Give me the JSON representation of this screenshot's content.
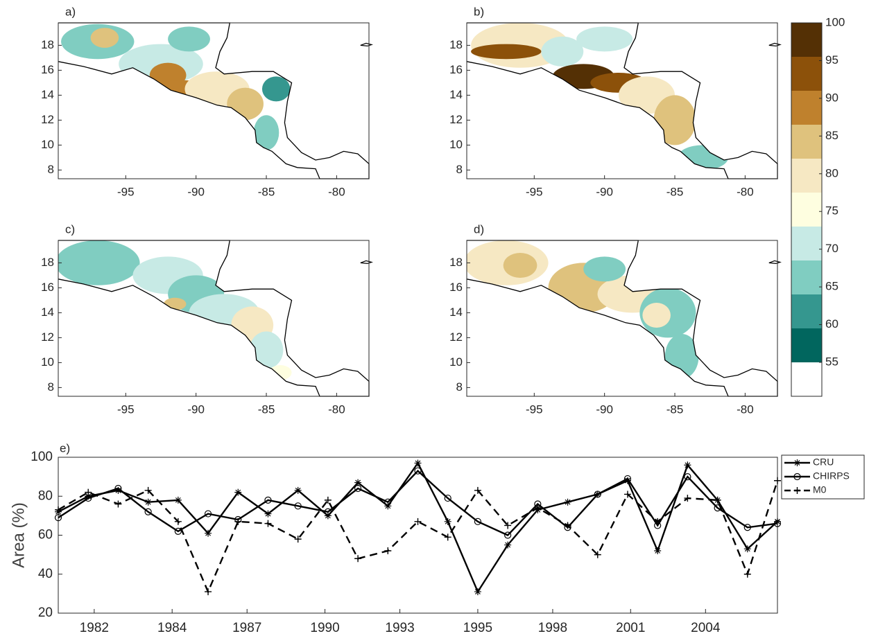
{
  "chart_data": [
    {
      "type": "map",
      "panel_label": "a)",
      "xlim": [
        -99.8,
        -77.7
      ],
      "ylim": [
        7.3,
        19.8
      ],
      "xticks": [
        -95,
        -90,
        -85,
        -80
      ],
      "yticks": [
        8,
        10,
        12,
        14,
        16,
        18
      ]
    },
    {
      "type": "map",
      "panel_label": "b)",
      "xlim": [
        -99.8,
        -77.7
      ],
      "ylim": [
        7.3,
        19.8
      ],
      "xticks": [
        -95,
        -90,
        -85,
        -80
      ],
      "yticks": [
        8,
        10,
        12,
        14,
        16,
        18
      ]
    },
    {
      "type": "map",
      "panel_label": "c)",
      "xlim": [
        -99.8,
        -77.7
      ],
      "ylim": [
        7.3,
        19.8
      ],
      "xticks": [
        -95,
        -90,
        -85,
        -80
      ],
      "yticks": [
        8,
        10,
        12,
        14,
        16,
        18
      ]
    },
    {
      "type": "map",
      "panel_label": "d)",
      "xlim": [
        -99.8,
        -77.7
      ],
      "ylim": [
        7.3,
        19.8
      ],
      "xticks": [
        -95,
        -90,
        -85,
        -80
      ],
      "yticks": [
        8,
        10,
        12,
        14,
        16,
        18
      ]
    },
    {
      "type": "colorbar",
      "ylim": [
        50.5,
        100
      ],
      "yticks": [
        55,
        60,
        65,
        70,
        75,
        80,
        85,
        90,
        95,
        100
      ],
      "colors": [
        "#543005",
        "#8c510a",
        "#bf812d",
        "#dfc27d",
        "#f6e8c3",
        "#fefee0",
        "#c7eae5",
        "#80cdc1",
        "#35978f",
        "#01665e",
        "#ffffff"
      ]
    },
    {
      "type": "line",
      "panel_label": "e)",
      "ylabel": "Area (%)",
      "x": [
        1981,
        1982,
        1983,
        1984,
        1985,
        1986,
        1987,
        1988,
        1989,
        1990,
        1991,
        1992,
        1993,
        1994,
        1995,
        1996,
        1997,
        1998,
        1999,
        2000,
        2001,
        2002,
        2003,
        2004,
        2005
      ],
      "xlim": [
        1981,
        2005
      ],
      "xticks": [
        {
          "value": 1982.2,
          "label": "1982"
        },
        {
          "value": 1984.8,
          "label": "1984"
        },
        {
          "value": 1987.3,
          "label": "1987"
        },
        {
          "value": 1989.9,
          "label": "1990"
        },
        {
          "value": 1992.4,
          "label": "1993"
        },
        {
          "value": 1995.0,
          "label": "1995"
        },
        {
          "value": 1997.5,
          "label": "1998"
        },
        {
          "value": 2000.1,
          "label": "2001"
        },
        {
          "value": 2002.6,
          "label": "2004"
        }
      ],
      "ylim": [
        20,
        100
      ],
      "yticks": [
        20,
        40,
        60,
        80,
        100
      ],
      "series": [
        {
          "name": "CRU",
          "color": "#000000",
          "marker": "star",
          "dash": false,
          "values": [
            72,
            80,
            83,
            77,
            78,
            61,
            82,
            71,
            83,
            70,
            87,
            75,
            97,
            67,
            31,
            55,
            73,
            77,
            81,
            88,
            52,
            96,
            78,
            53,
            67
          ]
        },
        {
          "name": "CHIRPS",
          "color": "#000000",
          "marker": "circle",
          "dash": false,
          "values": [
            69,
            79,
            84,
            72,
            62,
            71,
            68,
            78,
            75,
            72,
            84,
            77,
            93,
            79,
            67,
            60,
            76,
            64,
            81,
            89,
            65,
            90,
            74,
            64,
            66
          ]
        },
        {
          "name": "M0",
          "color": "#000000",
          "marker": "plus",
          "dash": true,
          "values": [
            73,
            82,
            76,
            83,
            67,
            31,
            67,
            66,
            58,
            78,
            48,
            52,
            67,
            59,
            83,
            65,
            74,
            65,
            50,
            81,
            67,
            79,
            78,
            40,
            88
          ]
        }
      ]
    }
  ]
}
